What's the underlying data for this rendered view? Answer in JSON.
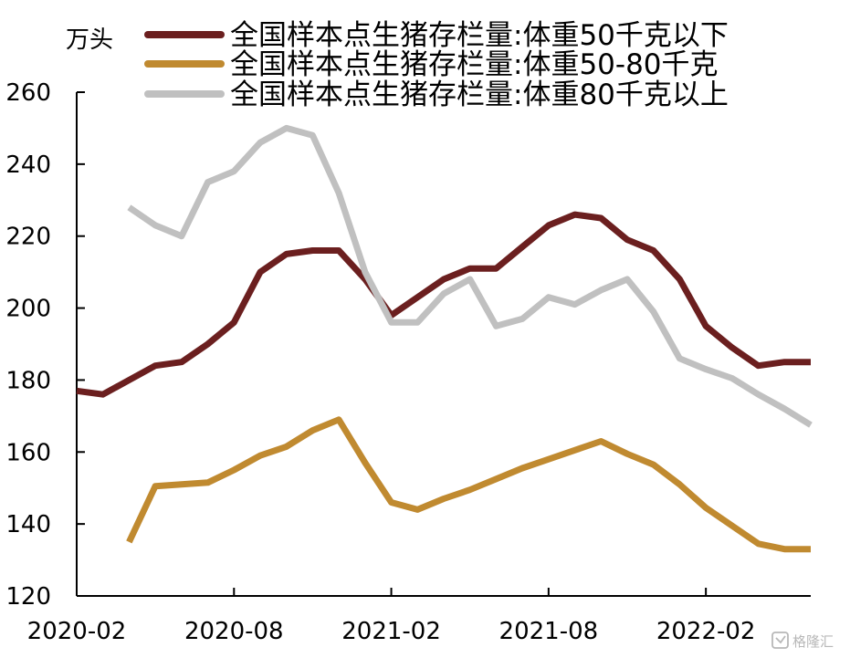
{
  "chart_data": {
    "type": "line",
    "unit_label": "万头",
    "x": [
      "2020-02",
      "2020-03",
      "2020-04",
      "2020-05",
      "2020-06",
      "2020-07",
      "2020-08",
      "2020-09",
      "2020-10",
      "2020-11",
      "2020-12",
      "2021-01",
      "2021-02",
      "2021-03",
      "2021-04",
      "2021-05",
      "2021-06",
      "2021-07",
      "2021-08",
      "2021-09",
      "2021-10",
      "2021-11",
      "2021-12",
      "2022-01",
      "2022-02",
      "2022-03",
      "2022-04",
      "2022-05",
      "2022-06"
    ],
    "xticks": [
      "2020-02",
      "2020-08",
      "2021-02",
      "2021-08",
      "2022-02"
    ],
    "yticks": [
      120,
      140,
      160,
      180,
      200,
      220,
      240,
      260
    ],
    "ylim": [
      120,
      260
    ],
    "legend_position": "top",
    "grid": false,
    "series": [
      {
        "name": "全国样本点生猪存栏量:体重50千克以下",
        "color": "#6b1f1f",
        "values": [
          177,
          176,
          180,
          184,
          185,
          190,
          196,
          210,
          215,
          216,
          216,
          208,
          198,
          203,
          208,
          211,
          211,
          217,
          223,
          226,
          225,
          219,
          216,
          208,
          195,
          189,
          184,
          185,
          185
        ]
      },
      {
        "name": "全国样本点生猪存栏量:体重50-80千克",
        "color": "#c08a30",
        "values": [
          null,
          null,
          135,
          150.5,
          151,
          151.5,
          155,
          159,
          161.5,
          166,
          169,
          157,
          146,
          144,
          147,
          149.5,
          152.5,
          155.5,
          158,
          160.5,
          163,
          159.5,
          156.5,
          151,
          144.5,
          139.5,
          134.5,
          133,
          133
        ]
      },
      {
        "name": "全国样本点生猪存栏量:体重80千克以上",
        "color": "#c0c0c0",
        "values": [
          null,
          null,
          228,
          223,
          220,
          235,
          238,
          246,
          250,
          248,
          232,
          210,
          196,
          196,
          204,
          208,
          195,
          197,
          203,
          201,
          205,
          208,
          199,
          186,
          183,
          180.5,
          176,
          172,
          167.5
        ]
      }
    ]
  },
  "watermark": {
    "text": "格隆汇",
    "icon": "gelonghui-logo-icon"
  }
}
